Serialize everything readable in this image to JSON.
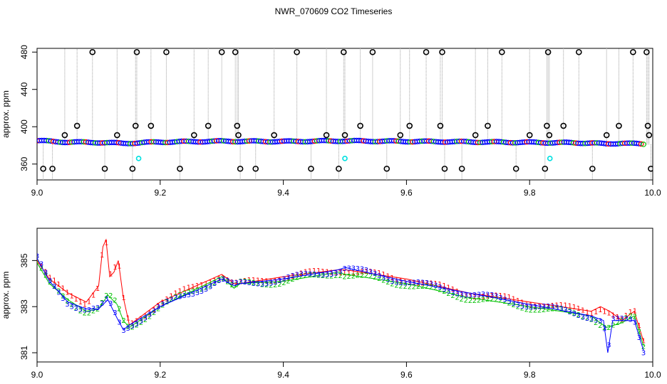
{
  "title": "NWR_070609  CO2 Timeseries",
  "colors": {
    "black": "#000000",
    "blue": "#0000ff",
    "red": "#ff0000",
    "green": "#00c000",
    "cyan": "#00e0e0",
    "gray": "#a0a0a0"
  },
  "chart_data": [
    {
      "type": "scatter",
      "ylabel": "approx. ppm",
      "xlabel": "",
      "xlim": [
        9.0,
        10.0
      ],
      "ylim": [
        343,
        484
      ],
      "xticks": [
        "9.0",
        "9.2",
        "9.4",
        "9.6",
        "9.8",
        "10.0"
      ],
      "yticks": [
        "360",
        "400",
        "440",
        "480"
      ],
      "grid": false,
      "baseline": [
        [
          9.0,
          385
        ],
        [
          9.05,
          383.5
        ],
        [
          9.1,
          383.2
        ],
        [
          9.14,
          382.2
        ],
        [
          9.2,
          383.6
        ],
        [
          9.3,
          384.5
        ],
        [
          9.4,
          384.2
        ],
        [
          9.49,
          384.8
        ],
        [
          9.5,
          384.8
        ],
        [
          9.6,
          384.3
        ],
        [
          9.7,
          383.8
        ],
        [
          9.8,
          383.2
        ],
        [
          9.9,
          382.6
        ],
        [
          9.925,
          381.5
        ],
        [
          9.95,
          382.6
        ],
        [
          9.985,
          381.2
        ]
      ],
      "outliers": [
        [
          9.01,
          355
        ],
        [
          9.025,
          355
        ],
        [
          9.045,
          391
        ],
        [
          9.065,
          401
        ],
        [
          9.09,
          480
        ],
        [
          9.11,
          355
        ],
        [
          9.13,
          391
        ],
        [
          9.155,
          355
        ],
        [
          9.16,
          401
        ],
        [
          9.162,
          480
        ],
        [
          9.185,
          401
        ],
        [
          9.21,
          480
        ],
        [
          9.232,
          355
        ],
        [
          9.255,
          391
        ],
        [
          9.278,
          401
        ],
        [
          9.3,
          480
        ],
        [
          9.322,
          480
        ],
        [
          9.325,
          401
        ],
        [
          9.327,
          391
        ],
        [
          9.33,
          355
        ],
        [
          9.355,
          355
        ],
        [
          9.385,
          391
        ],
        [
          9.422,
          480
        ],
        [
          9.445,
          355
        ],
        [
          9.47,
          391
        ],
        [
          9.49,
          355
        ],
        [
          9.498,
          480
        ],
        [
          9.5,
          391
        ],
        [
          9.525,
          401
        ],
        [
          9.545,
          480
        ],
        [
          9.568,
          355
        ],
        [
          9.59,
          391
        ],
        [
          9.605,
          401
        ],
        [
          9.632,
          480
        ],
        [
          9.655,
          401
        ],
        [
          9.658,
          480
        ],
        [
          9.662,
          355
        ],
        [
          9.69,
          355
        ],
        [
          9.712,
          391
        ],
        [
          9.732,
          401
        ],
        [
          9.755,
          480
        ],
        [
          9.778,
          355
        ],
        [
          9.8,
          391
        ],
        [
          9.825,
          355
        ],
        [
          9.828,
          401
        ],
        [
          9.83,
          480
        ],
        [
          9.832,
          391
        ],
        [
          9.855,
          401
        ],
        [
          9.88,
          480
        ],
        [
          9.902,
          355
        ],
        [
          9.925,
          391
        ],
        [
          9.945,
          401
        ],
        [
          9.968,
          480
        ],
        [
          9.99,
          480
        ],
        [
          9.992,
          401
        ],
        [
          9.994,
          391
        ],
        [
          9.997,
          355
        ]
      ],
      "cyan_points": [
        [
          9.165,
          366
        ],
        [
          9.5,
          366
        ],
        [
          9.833,
          366
        ]
      ]
    },
    {
      "type": "line",
      "ylabel": "approx. ppm",
      "xlabel": "",
      "xlim": [
        9.0,
        10.0
      ],
      "ylim": [
        380.6,
        386.4
      ],
      "xticks": [
        "9.0",
        "9.2",
        "9.4",
        "9.6",
        "9.8",
        "10.0"
      ],
      "yticks": [
        "381",
        "383",
        "385"
      ],
      "grid": false,
      "series": [
        {
          "name": "1",
          "values": [
            [
              9.0,
              385.0
            ],
            [
              9.02,
              384.2
            ],
            [
              9.05,
              383.6
            ],
            [
              9.08,
              383.2
            ],
            [
              9.1,
              383.9
            ],
            [
              9.107,
              385.6
            ],
            [
              9.112,
              385.9
            ],
            [
              9.118,
              384.3
            ],
            [
              9.125,
              384.5
            ],
            [
              9.132,
              385.0
            ],
            [
              9.14,
              383.4
            ],
            [
              9.15,
              382.2
            ],
            [
              9.2,
              383.2
            ],
            [
              9.3,
              384.4
            ],
            [
              9.32,
              384.0
            ],
            [
              9.33,
              384.0
            ],
            [
              9.4,
              384.3
            ],
            [
              9.49,
              384.6
            ],
            [
              9.5,
              384.6
            ],
            [
              9.6,
              384.2
            ],
            [
              9.7,
              383.6
            ],
            [
              9.8,
              383.2
            ],
            [
              9.9,
              382.8
            ],
            [
              9.915,
              383.0
            ],
            [
              9.93,
              382.8
            ],
            [
              9.95,
              382.4
            ],
            [
              9.97,
              382.8
            ],
            [
              9.985,
              381.5
            ]
          ]
        },
        {
          "name": "2",
          "values": [
            [
              9.0,
              384.9
            ],
            [
              9.02,
              384.0
            ],
            [
              9.05,
              383.3
            ],
            [
              9.08,
              382.8
            ],
            [
              9.1,
              382.9
            ],
            [
              9.115,
              383.5
            ],
            [
              9.13,
              383.1
            ],
            [
              9.14,
              382.4
            ],
            [
              9.15,
              382.1
            ],
            [
              9.2,
              383.0
            ],
            [
              9.3,
              384.3
            ],
            [
              9.32,
              383.8
            ],
            [
              9.33,
              384.0
            ],
            [
              9.4,
              384.1
            ],
            [
              9.49,
              384.5
            ],
            [
              9.5,
              384.4
            ],
            [
              9.6,
              384.0
            ],
            [
              9.7,
              383.4
            ],
            [
              9.8,
              383.0
            ],
            [
              9.9,
              382.6
            ],
            [
              9.925,
              382.1
            ],
            [
              9.95,
              382.3
            ],
            [
              9.97,
              382.6
            ],
            [
              9.985,
              381.3
            ]
          ]
        },
        {
          "name": "3",
          "values": [
            [
              9.0,
              385.1
            ],
            [
              9.02,
              384.1
            ],
            [
              9.05,
              383.2
            ],
            [
              9.08,
              382.9
            ],
            [
              9.1,
              382.9
            ],
            [
              9.115,
              383.3
            ],
            [
              9.13,
              382.5
            ],
            [
              9.14,
              382.0
            ],
            [
              9.15,
              382.2
            ],
            [
              9.2,
              383.0
            ],
            [
              9.3,
              384.2
            ],
            [
              9.32,
              383.9
            ],
            [
              9.33,
              384.0
            ],
            [
              9.4,
              384.2
            ],
            [
              9.49,
              384.6
            ],
            [
              9.5,
              384.7
            ],
            [
              9.6,
              384.1
            ],
            [
              9.7,
              383.6
            ],
            [
              9.8,
              383.1
            ],
            [
              9.9,
              382.6
            ],
            [
              9.92,
              382.4
            ],
            [
              9.927,
              381.0
            ],
            [
              9.935,
              382.4
            ],
            [
              9.97,
              382.4
            ],
            [
              9.985,
              381.1
            ]
          ]
        }
      ]
    }
  ]
}
